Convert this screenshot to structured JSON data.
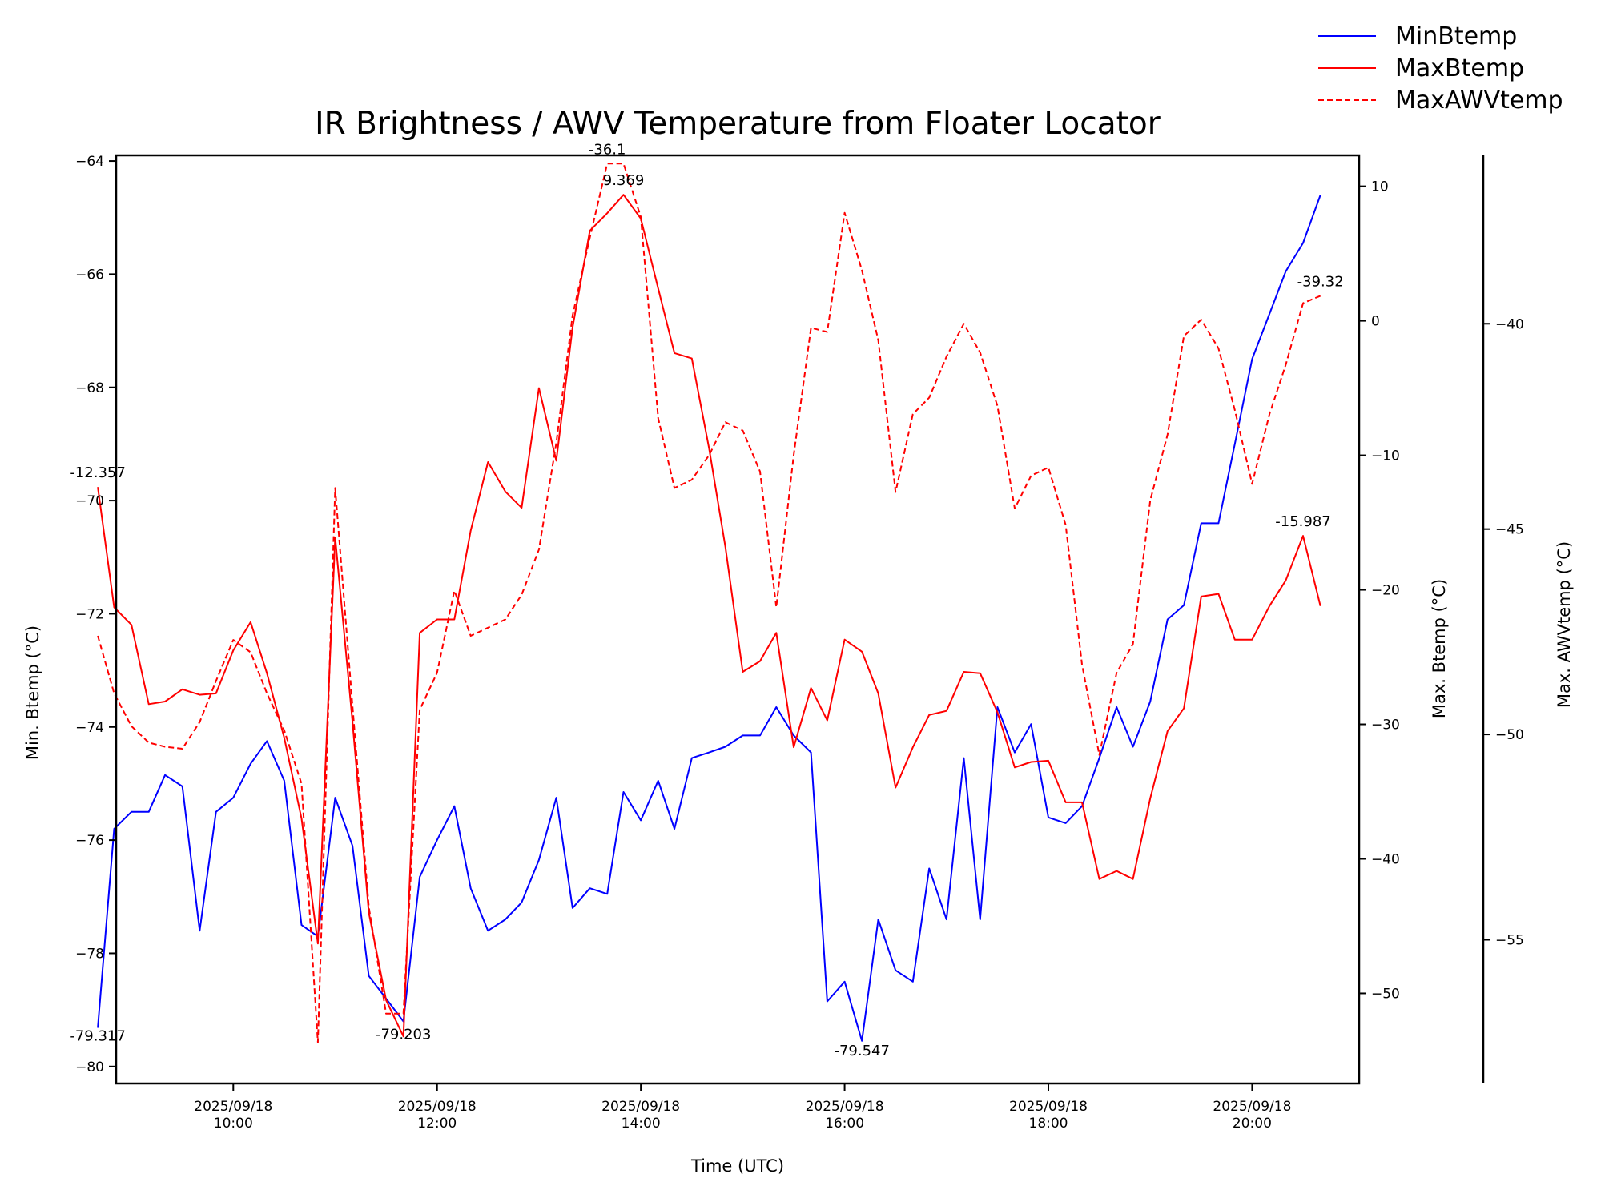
{
  "chart_data": {
    "type": "line",
    "title": "IR Brightness / AWV Temperature from Floater Locator",
    "xlabel": "Time (UTC)",
    "x_range": [
      8.85,
      21.05
    ],
    "x_ticks": [
      {
        "value": 10,
        "lines": [
          "2025/09/18",
          "10:00"
        ]
      },
      {
        "value": 12,
        "lines": [
          "2025/09/18",
          "12:00"
        ]
      },
      {
        "value": 14,
        "lines": [
          "2025/09/18",
          "14:00"
        ]
      },
      {
        "value": 16,
        "lines": [
          "2025/09/18",
          "16:00"
        ]
      },
      {
        "value": 18,
        "lines": [
          "2025/09/18",
          "18:00"
        ]
      },
      {
        "value": 20,
        "lines": [
          "2025/09/18",
          "20:00"
        ]
      }
    ],
    "axes": {
      "left": {
        "label": "Min. Btemp (°C)",
        "range": [
          -80.3,
          -63.9
        ],
        "ticks": [
          -80,
          -78,
          -76,
          -74,
          -72,
          -70,
          -68,
          -66,
          -64
        ],
        "tick_labels": [
          "−80",
          "−78",
          "−76",
          "−74",
          "−72",
          "−70",
          "−68",
          "−66",
          "−64"
        ]
      },
      "right": {
        "label": "Max. Btemp (°C)",
        "range": [
          -56.7,
          12.3
        ],
        "ticks": [
          -50,
          -40,
          -30,
          -20,
          -10,
          0,
          10
        ],
        "tick_labels": [
          "−50",
          "−40",
          "−30",
          "−20",
          "−10",
          "0",
          "10"
        ]
      },
      "right2": {
        "label": "Max. AWVtemp (°C)",
        "range": [
          -58.5,
          -35.9
        ],
        "ticks": [
          -55,
          -50,
          -45,
          -40
        ],
        "tick_labels": [
          "−55",
          "−50",
          "−45",
          "−40"
        ]
      }
    },
    "x": [
      8.67,
      8.83,
      9.0,
      9.17,
      9.33,
      9.5,
      9.67,
      9.83,
      10.0,
      10.17,
      10.33,
      10.5,
      10.67,
      10.83,
      11.0,
      11.17,
      11.33,
      11.5,
      11.67,
      11.83,
      12.0,
      12.17,
      12.33,
      12.5,
      12.67,
      12.83,
      13.0,
      13.17,
      13.33,
      13.5,
      13.67,
      13.83,
      14.0,
      14.17,
      14.33,
      14.5,
      14.67,
      14.83,
      15.0,
      15.17,
      15.33,
      15.5,
      15.67,
      15.83,
      16.0,
      16.17,
      16.33,
      16.5,
      16.67,
      16.83,
      17.0,
      17.17,
      17.33,
      17.5,
      17.67,
      17.83,
      18.0,
      18.17,
      18.33,
      18.5,
      18.67,
      18.83,
      19.0,
      19.17,
      19.33,
      19.5,
      19.67,
      19.83,
      20.0,
      20.17,
      20.33,
      20.5,
      20.67
    ],
    "series": [
      {
        "name": "MinBtemp",
        "axis": "left",
        "color": "#0000ff",
        "dash": "solid",
        "values": [
          -79.317,
          -75.8,
          -75.5,
          -75.5,
          -74.85,
          -75.05,
          -77.6,
          -75.5,
          -75.25,
          -74.65,
          -74.25,
          -74.95,
          -77.5,
          -77.7,
          -75.25,
          -76.1,
          -78.4,
          -78.8,
          -79.203,
          -76.65,
          -76.0,
          -75.4,
          -76.85,
          -77.6,
          -77.4,
          -77.1,
          -76.35,
          -75.25,
          -77.2,
          -76.85,
          -76.95,
          -75.15,
          -75.65,
          -74.95,
          -75.8,
          -74.55,
          -74.45,
          -74.35,
          -74.15,
          -74.15,
          -73.65,
          -74.15,
          -74.45,
          -78.85,
          -78.5,
          -79.547,
          -77.4,
          -78.3,
          -78.5,
          -76.5,
          -77.4,
          -74.55,
          -77.4,
          -73.65,
          -74.45,
          -73.95,
          -75.6,
          -75.7,
          -75.4,
          -74.55,
          -73.65,
          -74.35,
          -73.55,
          -72.1,
          -71.85,
          -70.4,
          -70.4,
          -69.0,
          -67.5,
          -66.7,
          -65.95,
          -65.45,
          -64.6
        ]
      },
      {
        "name": "MaxBtemp",
        "axis": "right",
        "color": "#ff0000",
        "dash": "solid",
        "values": [
          -12.357,
          -21.3,
          -22.6,
          -28.5,
          -28.3,
          -27.4,
          -27.8,
          -27.7,
          -24.5,
          -22.4,
          -26.2,
          -31.0,
          -37.0,
          -46.3,
          -16.1,
          -29.8,
          -44.0,
          -50.5,
          -53.2,
          -23.2,
          -22.2,
          -22.2,
          -15.6,
          -10.5,
          -12.7,
          -13.9,
          -5.0,
          -10.4,
          -0.5,
          6.7,
          8.0,
          9.369,
          7.6,
          2.4,
          -2.4,
          -2.8,
          -9.5,
          -16.8,
          -26.1,
          -25.3,
          -23.2,
          -31.7,
          -27.3,
          -29.7,
          -23.7,
          -24.6,
          -27.7,
          -34.7,
          -31.7,
          -29.3,
          -29.0,
          -26.1,
          -26.2,
          -29.1,
          -33.2,
          -32.8,
          -32.7,
          -35.8,
          -35.8,
          -41.5,
          -40.9,
          -41.5,
          -35.5,
          -30.5,
          -28.8,
          -20.5,
          -20.3,
          -23.7,
          -23.7,
          -21.2,
          -19.3,
          -15.987,
          -21.2
        ]
      },
      {
        "name": "MaxAWVtemp",
        "axis": "right2",
        "color": "#ff0000",
        "dash": "dashed",
        "values": [
          -47.6,
          -49.0,
          -49.8,
          -50.2,
          -50.3,
          -50.35,
          -49.7,
          -48.7,
          -47.7,
          -48.0,
          -49.0,
          -49.9,
          -51.2,
          -57.5,
          -44.0,
          -49.3,
          -54.2,
          -56.8,
          -56.8,
          -49.4,
          -48.5,
          -46.5,
          -47.6,
          -47.4,
          -47.2,
          -46.6,
          -45.5,
          -42.9,
          -39.8,
          -37.9,
          -36.1,
          -36.1,
          -37.4,
          -42.3,
          -44.0,
          -43.8,
          -43.2,
          -42.4,
          -42.6,
          -43.6,
          -46.9,
          -43.2,
          -40.1,
          -40.2,
          -37.3,
          -38.7,
          -40.4,
          -44.1,
          -42.2,
          -41.8,
          -40.8,
          -40.0,
          -40.7,
          -42.0,
          -44.5,
          -43.7,
          -43.5,
          -44.9,
          -48.3,
          -50.5,
          -48.5,
          -47.8,
          -44.3,
          -42.7,
          -40.3,
          -39.9,
          -40.6,
          -42.1,
          -43.9,
          -42.2,
          -41.0,
          -39.5,
          -39.32
        ]
      }
    ],
    "annotations": [
      {
        "text": "-12.357",
        "series": "MaxBtemp",
        "index": 0,
        "dx": 0,
        "dy": -12
      },
      {
        "text": "-79.317",
        "series": "MinBtemp",
        "index": 0,
        "dx": 0,
        "dy": 16
      },
      {
        "text": "-79.203",
        "series": "MinBtemp",
        "index": 18,
        "dx": 0,
        "dy": 22
      },
      {
        "text": "-79.547",
        "series": "MinBtemp",
        "index": 45,
        "dx": 0,
        "dy": 18
      },
      {
        "text": "-36.1",
        "series": "MaxAWVtemp",
        "index": 30,
        "dx": 0,
        "dy": -12
      },
      {
        "text": "9.369",
        "series": "MaxBtemp",
        "index": 31,
        "dx": 0,
        "dy": -12
      },
      {
        "text": "-39.32",
        "series": "MaxAWVtemp",
        "index": 72,
        "dx": 0,
        "dy": -12
      },
      {
        "text": "-15.987",
        "series": "MaxBtemp",
        "index": 71,
        "dx": 0,
        "dy": -12
      }
    ],
    "legend": {
      "placement": "top-right",
      "entries": [
        {
          "label": "MinBtemp",
          "color": "#0000ff",
          "dash": "solid"
        },
        {
          "label": "MaxBtemp",
          "color": "#ff0000",
          "dash": "solid"
        },
        {
          "label": "MaxAWVtemp",
          "color": "#ff0000",
          "dash": "dashed"
        }
      ]
    },
    "grid": false
  }
}
